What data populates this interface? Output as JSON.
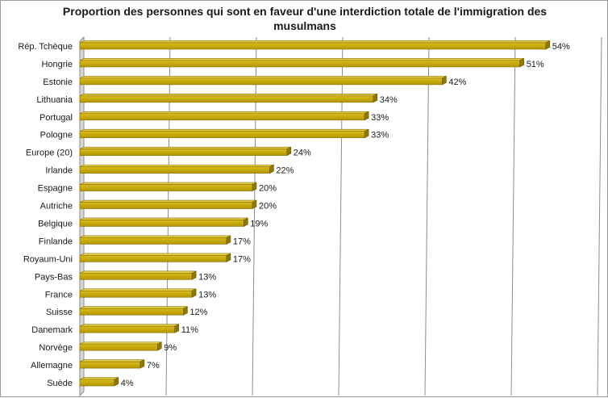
{
  "chart_data": {
    "type": "bar",
    "orientation": "horizontal",
    "title": "Proportion des personnes qui sont en faveur d'une interdiction totale de l'immigration des musulmans",
    "xlabel": "",
    "ylabel": "",
    "value_suffix": "%",
    "xlim": [
      0,
      60
    ],
    "grid": true,
    "legend": "none",
    "bar_color": "#C8AA00",
    "categories": [
      "Rép. Tchèque",
      "Hongrie",
      "Estonie",
      "Lithuania",
      "Portugal",
      "Pologne",
      "Europe (20)",
      "Irlande",
      "Espagne",
      "Autriche",
      "Belgique",
      "Finlande",
      "Royaum-Uni",
      "Pays-Bas",
      "France",
      "Suisse",
      "Danemark",
      "Norvège",
      "Allemagne",
      "Suède"
    ],
    "values": [
      54,
      51,
      42,
      34,
      33,
      33,
      24,
      22,
      20,
      20,
      19,
      17,
      17,
      13,
      13,
      12,
      11,
      9,
      7,
      4
    ]
  }
}
